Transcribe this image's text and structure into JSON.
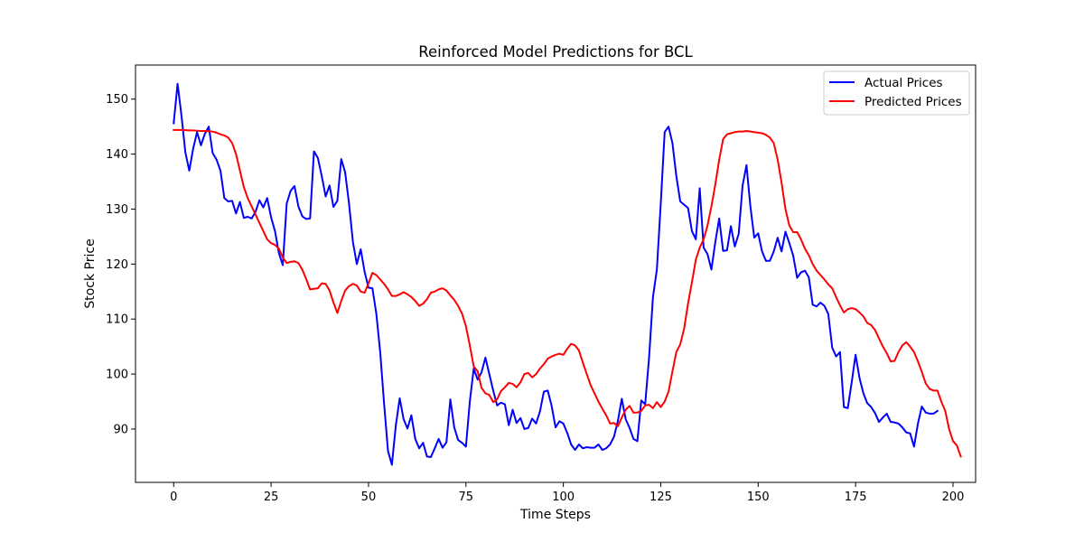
{
  "chart_data": {
    "type": "line",
    "title": "Reinforced Model Predictions for BCL",
    "xlabel": "Time Steps",
    "ylabel": "Stock Price",
    "xlim": [
      -9.8,
      205.8
    ],
    "ylim": [
      80.3,
      156.2
    ],
    "xticks": [
      0,
      25,
      50,
      75,
      100,
      125,
      150,
      175,
      200
    ],
    "yticks": [
      90,
      100,
      110,
      120,
      130,
      140,
      150
    ],
    "grid": false,
    "legend_position": "upper right",
    "series": [
      {
        "name": "Actual Prices",
        "color": "#0000ff",
        "values": [
          145.6,
          152.8,
          147.0,
          140.3,
          137.0,
          141.0,
          144.0,
          141.6,
          143.7,
          145.0,
          140.2,
          139.0,
          137.0,
          132.0,
          131.4,
          131.5,
          129.2,
          131.3,
          128.4,
          128.6,
          128.3,
          129.5,
          131.6,
          130.3,
          132.0,
          128.5,
          126.0,
          122.0,
          119.8,
          131.0,
          133.3,
          134.2,
          130.5,
          128.7,
          128.2,
          128.3,
          140.5,
          139.3,
          136.0,
          132.3,
          134.3,
          130.4,
          131.5,
          139.1,
          136.7,
          131.0,
          124.0,
          120.0,
          122.7,
          118.6,
          115.7,
          115.6,
          111.0,
          104.0,
          94.6,
          86.0,
          83.5,
          90.6,
          95.6,
          91.8,
          90.1,
          92.5,
          88.2,
          86.5,
          87.5,
          85.0,
          84.9,
          86.5,
          88.2,
          86.6,
          87.6,
          95.4,
          90.3,
          88.0,
          87.5,
          86.8,
          95.0,
          101.0,
          99.0,
          100.3,
          103.0,
          100.0,
          97.0,
          94.3,
          94.8,
          94.5,
          90.7,
          93.5,
          91.1,
          92.0,
          90.0,
          90.2,
          91.9,
          91.0,
          93.2,
          96.8,
          97.0,
          94.2,
          90.3,
          91.4,
          91.0,
          89.3,
          87.2,
          86.2,
          87.2,
          86.5,
          86.7,
          86.6,
          86.6,
          87.2,
          86.2,
          86.5,
          87.2,
          88.6,
          91.5,
          95.5,
          91.8,
          90.2,
          88.2,
          87.8,
          95.2,
          94.5,
          103.0,
          114.0,
          119.0,
          131.0,
          144.0,
          145.0,
          142.0,
          136.0,
          131.4,
          130.8,
          130.2,
          126.0,
          124.5,
          133.8,
          123.0,
          121.8,
          119.0,
          124.0,
          128.3,
          122.4,
          122.5,
          126.9,
          123.2,
          125.5,
          134.3,
          138.0,
          130.5,
          124.8,
          125.6,
          122.3,
          120.6,
          120.6,
          122.3,
          124.8,
          122.3,
          125.9,
          123.8,
          121.5,
          117.5,
          118.5,
          118.8,
          117.6,
          112.6,
          112.3,
          113.0,
          112.4,
          110.9,
          104.8,
          103.2,
          104.0,
          94.0,
          93.8,
          98.5,
          103.5,
          99.3,
          96.5,
          94.7,
          94.0,
          92.9,
          91.3,
          92.1,
          92.8,
          91.3,
          91.2,
          91.0,
          90.3,
          89.4,
          89.2,
          86.8,
          91.0,
          94.1,
          93.0,
          92.8,
          92.8,
          93.3
        ]
      },
      {
        "name": "Predicted Prices",
        "color": "#ff0000",
        "values": [
          144.4,
          144.4,
          144.4,
          144.35,
          144.3,
          144.3,
          144.25,
          144.2,
          144.2,
          144.15,
          144.1,
          143.9,
          143.6,
          143.4,
          143.0,
          142.0,
          140.0,
          137.0,
          134.0,
          132.0,
          130.5,
          129.0,
          127.5,
          126.0,
          124.5,
          123.8,
          123.5,
          122.8,
          121.2,
          120.2,
          120.4,
          120.5,
          120.2,
          119.0,
          117.3,
          115.4,
          115.5,
          115.6,
          116.5,
          116.4,
          115.2,
          113.0,
          111.1,
          113.3,
          115.2,
          116.0,
          116.4,
          116.1,
          115.0,
          114.8,
          116.5,
          118.4,
          118.0,
          117.2,
          116.4,
          115.4,
          114.2,
          114.2,
          114.5,
          114.9,
          114.5,
          114.0,
          113.3,
          112.4,
          112.8,
          113.6,
          114.8,
          115.0,
          115.4,
          115.6,
          115.2,
          114.3,
          113.5,
          112.4,
          111.0,
          108.7,
          105.2,
          101.4,
          100.5,
          97.5,
          96.5,
          96.2,
          94.9,
          95.4,
          96.9,
          97.6,
          98.4,
          98.2,
          97.6,
          98.5,
          100.0,
          100.2,
          99.4,
          100.0,
          101.0,
          101.8,
          102.8,
          103.2,
          103.5,
          103.7,
          103.5,
          104.6,
          105.5,
          105.2,
          104.3,
          102.1,
          100.0,
          98.0,
          96.5,
          95.0,
          93.7,
          92.5,
          91.0,
          91.1,
          90.5,
          92.1,
          93.5,
          94.2,
          93.0,
          93.0,
          93.3,
          94.3,
          94.4,
          93.8,
          94.9,
          94.0,
          95.0,
          96.8,
          100.5,
          104.0,
          105.4,
          108.3,
          112.8,
          116.7,
          120.8,
          123.0,
          124.5,
          127.0,
          130.5,
          134.5,
          139.0,
          142.7,
          143.6,
          143.8,
          144.0,
          144.1,
          144.1,
          144.2,
          144.1,
          144.0,
          143.9,
          143.8,
          143.5,
          143.0,
          142.0,
          139.0,
          134.8,
          130.0,
          127.0,
          125.8,
          125.8,
          124.5,
          122.8,
          121.6,
          120.0,
          118.8,
          118.0,
          117.2,
          116.3,
          115.6,
          114.0,
          112.5,
          111.2,
          111.8,
          112.0,
          111.8,
          111.2,
          110.5,
          109.3,
          108.9,
          108.0,
          106.5,
          105.0,
          103.8,
          102.3,
          102.4,
          104.0,
          105.2,
          105.8,
          105.0,
          104.0,
          102.3,
          100.4,
          98.3,
          97.3,
          97.0,
          97.0,
          95.0,
          93.3,
          90.0,
          87.8,
          87.0,
          85.0
        ]
      }
    ]
  }
}
